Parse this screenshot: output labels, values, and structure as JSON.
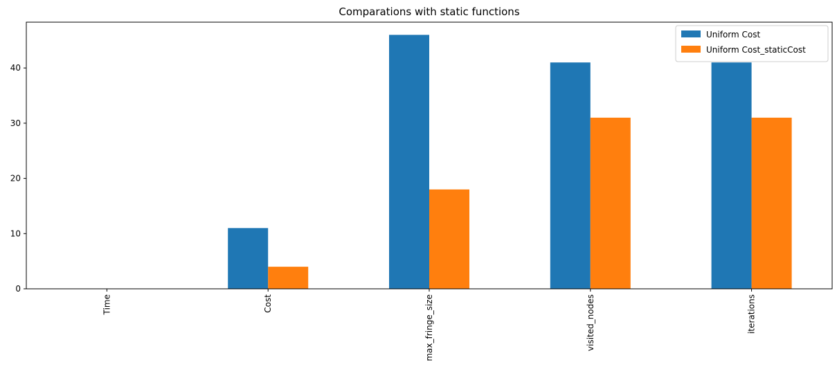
{
  "chart_data": {
    "type": "bar",
    "title": "Comparations with static functions",
    "xlabel": "",
    "ylabel": "",
    "categories": [
      "Time",
      "Cost",
      "max_fringe_size",
      "visited_nodes",
      "iterations"
    ],
    "series": [
      {
        "name": "Uniform Cost",
        "color": "#1f77b4",
        "values": [
          0.0,
          11,
          46,
          41,
          41
        ]
      },
      {
        "name": "Uniform Cost_staticCost",
        "color": "#ff7f0e",
        "values": [
          0.0,
          4,
          18,
          31,
          31
        ]
      }
    ],
    "ylim": [
      0,
      48.3
    ],
    "yticks": [
      "0",
      "10",
      "20",
      "30",
      "40"
    ],
    "grid": false,
    "legend_position": "top-right",
    "x_tick_rotation": "vertical"
  }
}
